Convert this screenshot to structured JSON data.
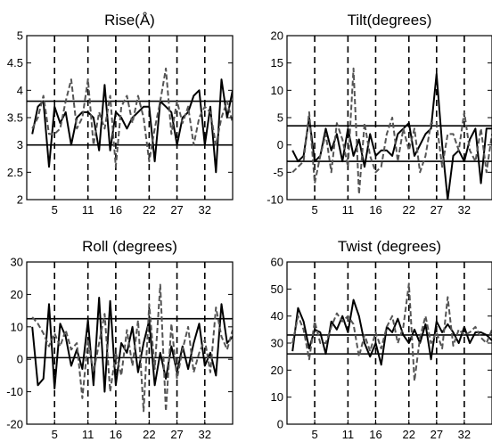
{
  "chart_data": [
    {
      "type": "line",
      "title": "Rise(Å)",
      "ylim": [
        2,
        5
      ],
      "yticks": [
        2,
        2.5,
        3,
        3.5,
        4,
        4.5,
        5
      ],
      "xlim": [
        0,
        37
      ],
      "xticks": [
        5,
        11,
        16,
        22,
        27,
        32
      ],
      "vlines": [
        5,
        11,
        16,
        22,
        27,
        32
      ],
      "hlines": [
        3.8,
        3.0
      ],
      "series": [
        {
          "style": "solid",
          "x": [
            1,
            2,
            3,
            4,
            5,
            6,
            7,
            8,
            9,
            10,
            11,
            12,
            13,
            14,
            15,
            16,
            17,
            18,
            19,
            20,
            21,
            22,
            23,
            24,
            25,
            26,
            27,
            28,
            29,
            30,
            31,
            32,
            33,
            34,
            35,
            36,
            37
          ],
          "values": [
            3.2,
            3.7,
            3.8,
            2.6,
            3.7,
            3.4,
            3.6,
            3.0,
            3.5,
            3.6,
            3.6,
            3.5,
            2.9,
            4.1,
            2.9,
            3.6,
            3.5,
            3.3,
            3.5,
            3.6,
            3.7,
            3.7,
            2.7,
            3.8,
            3.7,
            3.6,
            3.0,
            3.5,
            3.6,
            3.9,
            4.0,
            3.0,
            3.7,
            2.5,
            4.2,
            3.5,
            4.0
          ]
        },
        {
          "style": "dashed",
          "x": [
            1,
            2,
            3,
            4,
            5,
            6,
            7,
            8,
            9,
            10,
            11,
            12,
            13,
            14,
            15,
            16,
            17,
            18,
            19,
            20,
            21,
            22,
            23,
            24,
            25,
            26,
            27,
            28,
            29,
            30,
            31,
            32,
            33,
            34,
            35,
            36,
            37
          ],
          "values": [
            3.3,
            3.5,
            3.9,
            3.2,
            3.2,
            3.3,
            3.8,
            4.2,
            3.3,
            3.5,
            4.2,
            3.0,
            3.6,
            3.3,
            3.9,
            2.6,
            3.7,
            3.9,
            3.4,
            3.9,
            3.5,
            2.7,
            3.3,
            3.8,
            4.4,
            3.2,
            3.8,
            3.4,
            3.7,
            3.0,
            3.5,
            3.7,
            3.6,
            3.0,
            3.5,
            3.8,
            3.4
          ]
        }
      ]
    },
    {
      "type": "line",
      "title": "Tilt(degrees)",
      "ylim": [
        -10,
        20
      ],
      "yticks": [
        -10,
        -5,
        0,
        5,
        10,
        15,
        20
      ],
      "xlim": [
        0,
        37
      ],
      "xticks": [
        5,
        11,
        16,
        22,
        27,
        32
      ],
      "vlines": [
        5,
        11,
        16,
        22,
        27,
        32
      ],
      "hlines": [
        3.5,
        -3.0
      ],
      "series": [
        {
          "style": "solid",
          "x": [
            1,
            2,
            3,
            4,
            5,
            6,
            7,
            8,
            9,
            10,
            11,
            12,
            13,
            14,
            15,
            16,
            17,
            18,
            19,
            20,
            21,
            22,
            23,
            24,
            25,
            26,
            27,
            28,
            29,
            30,
            31,
            32,
            33,
            34,
            35,
            36,
            37
          ],
          "values": [
            -1,
            -3,
            -2,
            5,
            -3,
            -2,
            3,
            -1,
            2,
            -3,
            3,
            -2,
            1,
            -4,
            2,
            -2,
            -1,
            -1,
            -2,
            2,
            3,
            4,
            -2,
            0,
            2,
            3,
            13,
            0,
            -10,
            -2,
            -1,
            -3,
            1,
            3,
            -7,
            3,
            3
          ]
        },
        {
          "style": "dashed",
          "x": [
            1,
            2,
            3,
            4,
            5,
            6,
            7,
            8,
            9,
            10,
            11,
            12,
            13,
            14,
            15,
            16,
            17,
            18,
            19,
            20,
            21,
            22,
            23,
            24,
            25,
            26,
            27,
            28,
            29,
            30,
            31,
            32,
            33,
            34,
            35,
            36,
            37
          ],
          "values": [
            -5,
            -4,
            -3,
            6,
            -7,
            -2,
            2,
            -5,
            4,
            1,
            -4,
            14,
            -9,
            4,
            -2,
            -5,
            -4,
            2,
            5,
            -3,
            3,
            -1,
            3,
            -5,
            -2,
            4,
            4,
            -4,
            2,
            2,
            -1,
            6,
            -1,
            -3,
            3,
            -5,
            2
          ]
        }
      ]
    },
    {
      "type": "line",
      "title": "Roll (degrees)",
      "ylim": [
        -20,
        30
      ],
      "yticks": [
        -20,
        -10,
        0,
        10,
        20,
        30
      ],
      "xlim": [
        0,
        37
      ],
      "xticks": [
        5,
        11,
        16,
        22,
        27,
        32
      ],
      "vlines": [
        5,
        11,
        16,
        22,
        27,
        32
      ],
      "hlines": [
        12.5,
        0.5
      ],
      "series": [
        {
          "style": "solid",
          "x": [
            1,
            2,
            3,
            4,
            5,
            6,
            7,
            8,
            9,
            10,
            11,
            12,
            13,
            14,
            15,
            16,
            17,
            18,
            19,
            20,
            21,
            22,
            23,
            24,
            25,
            26,
            27,
            28,
            29,
            30,
            31,
            32,
            33,
            34,
            35,
            36,
            37
          ],
          "values": [
            10,
            -8,
            -6,
            17,
            -9,
            11,
            7,
            -2,
            3,
            -3,
            12,
            -8,
            19,
            -10,
            18,
            -8,
            5,
            2,
            10,
            -4,
            5,
            12,
            -8,
            2,
            -6,
            4,
            -4,
            4,
            -3,
            5,
            11,
            -2,
            2,
            -5,
            17,
            5,
            7
          ]
        },
        {
          "style": "dashed",
          "x": [
            1,
            2,
            3,
            4,
            5,
            6,
            7,
            8,
            9,
            10,
            11,
            12,
            13,
            14,
            15,
            16,
            17,
            18,
            19,
            20,
            21,
            22,
            23,
            24,
            25,
            26,
            27,
            28,
            29,
            30,
            31,
            32,
            33,
            34,
            35,
            36,
            37
          ],
          "values": [
            13,
            11,
            8,
            4,
            8,
            4,
            9,
            3,
            5,
            -12,
            6,
            -4,
            5,
            14,
            -10,
            2,
            -5,
            9,
            -2,
            12,
            -16,
            17,
            -3,
            23,
            -16,
            11,
            -6,
            3,
            10,
            -4,
            2,
            6,
            -4,
            16,
            7,
            3,
            9
          ]
        }
      ]
    },
    {
      "type": "line",
      "title": "Twist (degrees)",
      "ylim": [
        0,
        60
      ],
      "yticks": [
        0,
        10,
        20,
        30,
        40,
        50,
        60
      ],
      "xlim": [
        0,
        37
      ],
      "xticks": [
        5,
        11,
        16,
        22,
        27,
        32
      ],
      "vlines": [
        5,
        11,
        16,
        22,
        27,
        32
      ],
      "hlines": [
        33,
        26
      ],
      "series": [
        {
          "style": "solid",
          "x": [
            1,
            2,
            3,
            4,
            5,
            6,
            7,
            8,
            9,
            10,
            11,
            12,
            13,
            14,
            15,
            16,
            17,
            18,
            19,
            20,
            21,
            22,
            23,
            24,
            25,
            26,
            27,
            28,
            29,
            30,
            31,
            32,
            33,
            34,
            35,
            36,
            37
          ],
          "values": [
            27,
            43,
            38,
            28,
            35,
            34,
            26,
            38,
            35,
            40,
            34,
            46,
            40,
            30,
            25,
            30,
            22,
            36,
            34,
            39,
            33,
            30,
            35,
            30,
            37,
            24,
            38,
            34,
            37,
            34,
            30,
            36,
            30,
            34,
            34,
            33,
            31
          ]
        },
        {
          "style": "dashed",
          "x": [
            1,
            2,
            3,
            4,
            5,
            6,
            7,
            8,
            9,
            10,
            11,
            12,
            13,
            14,
            15,
            16,
            17,
            18,
            19,
            20,
            21,
            22,
            23,
            24,
            25,
            26,
            27,
            28,
            29,
            30,
            31,
            32,
            33,
            34,
            35,
            36,
            37
          ],
          "values": [
            30,
            40,
            35,
            24,
            38,
            30,
            30,
            36,
            41,
            38,
            40,
            37,
            25,
            33,
            27,
            34,
            28,
            36,
            40,
            30,
            36,
            52,
            16,
            32,
            40,
            30,
            34,
            28,
            47,
            29,
            35,
            33,
            34,
            36,
            32,
            30,
            35
          ]
        }
      ]
    }
  ]
}
